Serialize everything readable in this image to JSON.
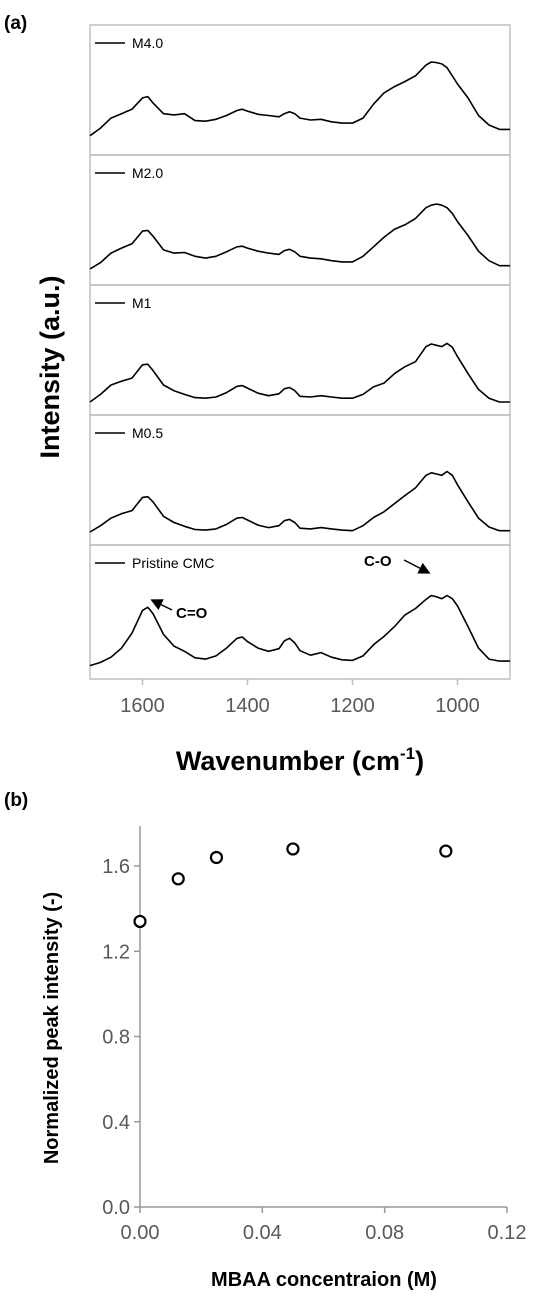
{
  "chart_data": [
    {
      "panel_label": "(a)",
      "type": "line",
      "xlabel": "Wavenumber (cm",
      "xlabel_sup": "-1",
      "xlabel_close": ")",
      "ylabel": "Intensity (a.u.)",
      "xlim": [
        1700,
        900
      ],
      "x_reversed": true,
      "x_ticks": [
        "1600",
        "1400",
        "1200",
        "1000"
      ],
      "x_tick_values": [
        1600,
        1400,
        1200,
        1000
      ],
      "grid": false,
      "x": [
        1700,
        1680,
        1660,
        1640,
        1620,
        1600,
        1590,
        1580,
        1560,
        1540,
        1520,
        1500,
        1480,
        1460,
        1440,
        1420,
        1410,
        1400,
        1380,
        1360,
        1340,
        1330,
        1320,
        1310,
        1300,
        1280,
        1260,
        1240,
        1220,
        1200,
        1180,
        1160,
        1140,
        1120,
        1100,
        1080,
        1060,
        1050,
        1040,
        1030,
        1020,
        1010,
        1000,
        980,
        960,
        940,
        920,
        900
      ],
      "series": [
        {
          "name": "M4.0",
          "values": [
            0.1,
            0.22,
            0.38,
            0.45,
            0.52,
            0.7,
            0.72,
            0.62,
            0.45,
            0.43,
            0.45,
            0.34,
            0.33,
            0.36,
            0.42,
            0.5,
            0.52,
            0.49,
            0.44,
            0.42,
            0.4,
            0.45,
            0.48,
            0.45,
            0.38,
            0.35,
            0.36,
            0.32,
            0.3,
            0.3,
            0.38,
            0.6,
            0.78,
            0.88,
            0.96,
            1.05,
            1.22,
            1.27,
            1.26,
            1.24,
            1.18,
            1.05,
            0.92,
            0.7,
            0.42,
            0.27,
            0.2,
            0.2
          ]
        },
        {
          "name": "M2.0",
          "values": [
            0.05,
            0.15,
            0.3,
            0.38,
            0.45,
            0.65,
            0.66,
            0.57,
            0.35,
            0.3,
            0.31,
            0.25,
            0.22,
            0.25,
            0.32,
            0.4,
            0.41,
            0.38,
            0.33,
            0.3,
            0.28,
            0.34,
            0.36,
            0.32,
            0.25,
            0.22,
            0.21,
            0.18,
            0.16,
            0.16,
            0.25,
            0.4,
            0.55,
            0.68,
            0.75,
            0.85,
            1.02,
            1.06,
            1.08,
            1.06,
            1.02,
            0.93,
            0.8,
            0.58,
            0.33,
            0.18,
            0.1,
            0.1
          ]
        },
        {
          "name": "M1",
          "values": [
            0.0,
            0.12,
            0.27,
            0.33,
            0.38,
            0.59,
            0.6,
            0.5,
            0.27,
            0.18,
            0.12,
            0.07,
            0.06,
            0.08,
            0.15,
            0.25,
            0.26,
            0.22,
            0.14,
            0.1,
            0.13,
            0.21,
            0.23,
            0.18,
            0.09,
            0.08,
            0.1,
            0.08,
            0.06,
            0.06,
            0.12,
            0.24,
            0.3,
            0.45,
            0.56,
            0.64,
            0.88,
            0.92,
            0.9,
            0.88,
            0.93,
            0.87,
            0.72,
            0.45,
            0.2,
            0.06,
            0.0,
            0.0
          ]
        },
        {
          "name": "M0.5",
          "values": [
            0.0,
            0.1,
            0.22,
            0.29,
            0.34,
            0.55,
            0.56,
            0.48,
            0.25,
            0.15,
            0.09,
            0.04,
            0.03,
            0.05,
            0.12,
            0.22,
            0.23,
            0.19,
            0.11,
            0.07,
            0.1,
            0.18,
            0.2,
            0.15,
            0.06,
            0.05,
            0.07,
            0.05,
            0.03,
            0.02,
            0.1,
            0.23,
            0.32,
            0.45,
            0.58,
            0.7,
            0.9,
            0.94,
            0.92,
            0.9,
            0.96,
            0.9,
            0.75,
            0.48,
            0.22,
            0.08,
            0.02,
            0.02
          ]
        },
        {
          "name": "Pristine CMC",
          "values": [
            0.0,
            0.05,
            0.13,
            0.27,
            0.5,
            0.85,
            0.9,
            0.8,
            0.48,
            0.3,
            0.22,
            0.12,
            0.1,
            0.15,
            0.27,
            0.42,
            0.44,
            0.37,
            0.27,
            0.22,
            0.26,
            0.38,
            0.42,
            0.35,
            0.23,
            0.16,
            0.2,
            0.13,
            0.09,
            0.08,
            0.15,
            0.32,
            0.45,
            0.6,
            0.78,
            0.88,
            1.02,
            1.08,
            1.06,
            1.03,
            1.08,
            1.03,
            0.92,
            0.6,
            0.27,
            0.1,
            0.07,
            0.07
          ]
        }
      ],
      "annotations": [
        {
          "text": "C=O",
          "x": 1590
        },
        {
          "text": "C-O",
          "x": 1050
        }
      ]
    },
    {
      "panel_label": "(b)",
      "type": "scatter",
      "xlabel": "MBAA concentraion (M)",
      "ylabel": "Normalized peak intensity (-)",
      "xlim": [
        0,
        0.12
      ],
      "ylim": [
        0,
        1.8
      ],
      "x_ticks": [
        "0.00",
        "0.04",
        "0.08",
        "0.12"
      ],
      "x_tick_values": [
        0,
        0.04,
        0.08,
        0.12
      ],
      "y_ticks": [
        "0.0",
        "0.4",
        "0.8",
        "1.2",
        "1.6"
      ],
      "y_tick_values": [
        0,
        0.4,
        0.8,
        1.2,
        1.6
      ],
      "grid": false,
      "x": [
        0.0,
        0.0125,
        0.025,
        0.05,
        0.1
      ],
      "y": [
        1.34,
        1.54,
        1.64,
        1.68,
        1.67
      ],
      "error": [
        0.02,
        0.02,
        0.02,
        0.02,
        0.03
      ]
    }
  ]
}
